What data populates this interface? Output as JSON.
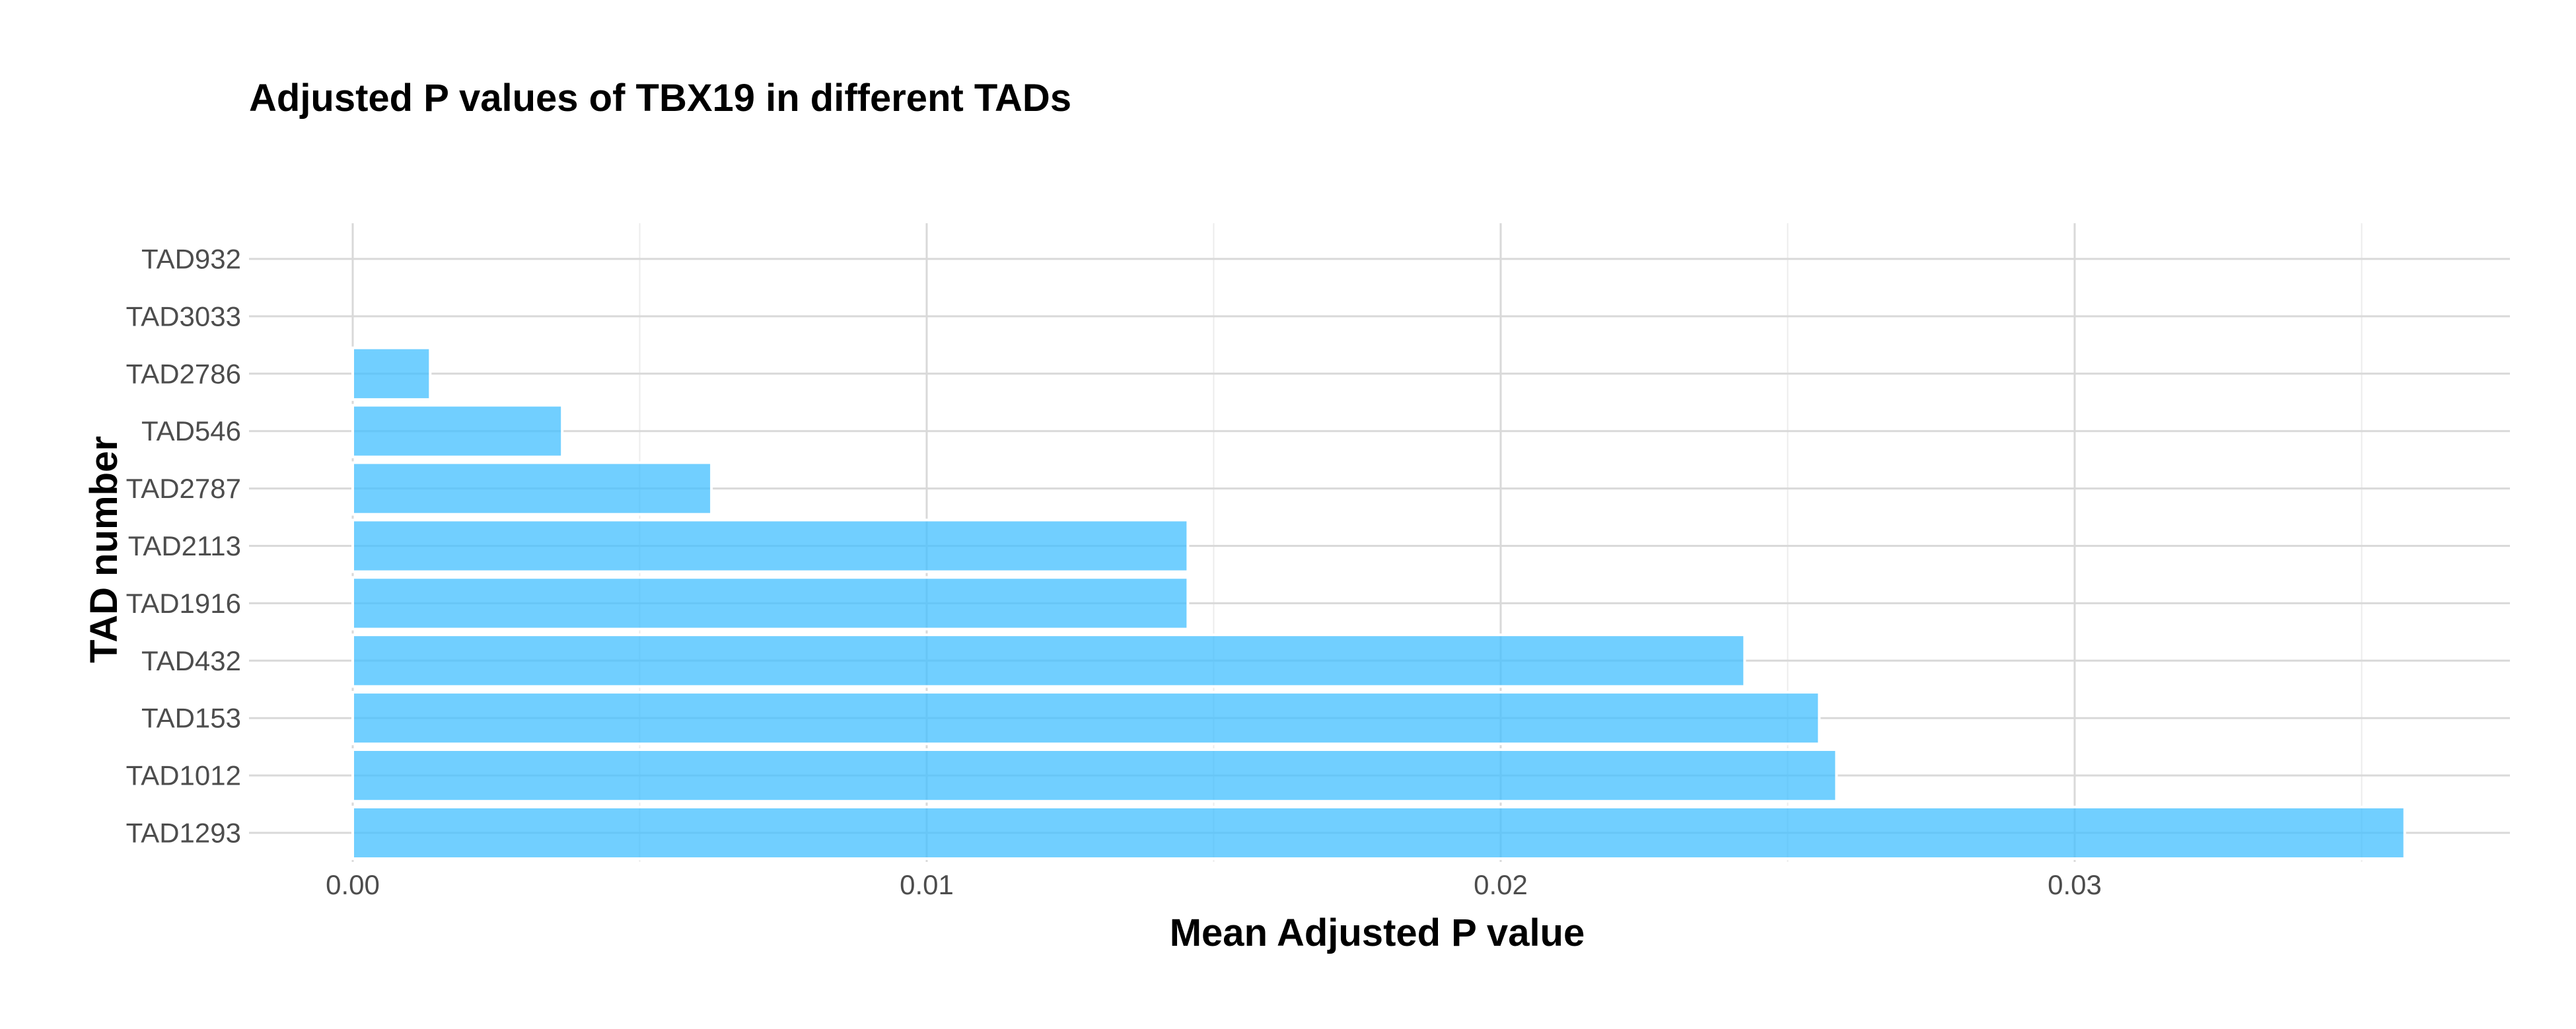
{
  "chart_data": {
    "type": "bar",
    "orientation": "horizontal",
    "title": "Adjusted P values of TBX19 in different TADs",
    "xlabel": "Mean Adjusted P value",
    "ylabel": "TAD number",
    "categories": [
      "TAD932",
      "TAD3033",
      "TAD2786",
      "TAD546",
      "TAD2787",
      "TAD2113",
      "TAD1916",
      "TAD432",
      "TAD153",
      "TAD1012",
      "TAD1293"
    ],
    "values": [
      0.0,
      0.0,
      0.00135,
      0.00365,
      0.00625,
      0.01455,
      0.01455,
      0.02425,
      0.02555,
      0.02585,
      0.03575
    ],
    "xlim": [
      0.0,
      0.0376
    ],
    "xticks": [
      0.0,
      0.01,
      0.02,
      0.03
    ],
    "xtick_labels": [
      "0.00",
      "0.01",
      "0.02",
      "0.03"
    ],
    "grid": true,
    "bar_color": "#42BFFF"
  }
}
